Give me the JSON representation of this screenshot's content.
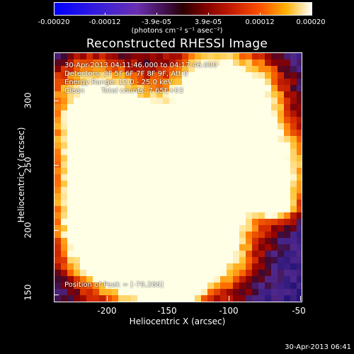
{
  "colorbar": {
    "ticks": [
      "-0.00020",
      "-0.00012",
      "-3.9e-05",
      "3.9e-05",
      "0.00012",
      "0.00020"
    ],
    "units": "(photons cm⁻² s⁻¹ asec⁻²)"
  },
  "title": "Reconstructed RHESSI Image",
  "info": {
    "time": "30-Apr-2013 04:11:46.000 to 04:17:46.000",
    "detectors": "Detectors: 3F 5F 6F 7F 8F 9F, Att 0",
    "energy": "Energy Range: 12.0 - 25.0 keV",
    "method": "Clean",
    "counts": "Total counts: 7.65E+03",
    "peak": "Position of Peak = [-79,286]"
  },
  "axes": {
    "xlabel": "Heliocentric X (arcsec)",
    "ylabel": "Heliocentric Y (arcsec)",
    "xticks": [
      "-200",
      "-150",
      "-100",
      "-50"
    ],
    "yticks": [
      "300",
      "250",
      "200",
      "150"
    ]
  },
  "timestamp": "30-Apr-2013 06:41",
  "colors": {
    "background": "#000000",
    "text": "#ffffff"
  }
}
